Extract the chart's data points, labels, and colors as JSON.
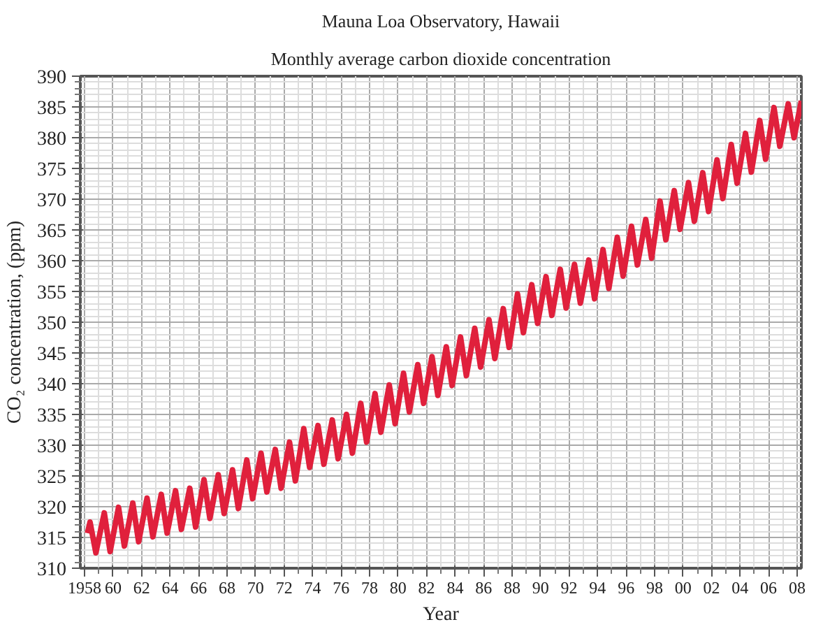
{
  "chart_data": {
    "type": "line",
    "title": "Mauna Loa Observatory, Hawaii",
    "subtitle": "Monthly average carbon dioxide concentration",
    "xlabel": "Year",
    "ylabel": "CO₂ concentration, (ppm)",
    "xlim": [
      1957.7,
      2008.3
    ],
    "ylim": [
      310,
      390
    ],
    "xticks": [
      {
        "value": 1958,
        "label": "1958"
      },
      {
        "value": 1960,
        "label": "60"
      },
      {
        "value": 1962,
        "label": "62"
      },
      {
        "value": 1964,
        "label": "64"
      },
      {
        "value": 1966,
        "label": "66"
      },
      {
        "value": 1968,
        "label": "68"
      },
      {
        "value": 1970,
        "label": "70"
      },
      {
        "value": 1972,
        "label": "72"
      },
      {
        "value": 1974,
        "label": "74"
      },
      {
        "value": 1976,
        "label": "76"
      },
      {
        "value": 1978,
        "label": "78"
      },
      {
        "value": 1980,
        "label": "80"
      },
      {
        "value": 1982,
        "label": "82"
      },
      {
        "value": 1984,
        "label": "84"
      },
      {
        "value": 1986,
        "label": "86"
      },
      {
        "value": 1988,
        "label": "88"
      },
      {
        "value": 1990,
        "label": "90"
      },
      {
        "value": 1992,
        "label": "92"
      },
      {
        "value": 1994,
        "label": "94"
      },
      {
        "value": 1996,
        "label": "96"
      },
      {
        "value": 1998,
        "label": "98"
      },
      {
        "value": 2000,
        "label": "00"
      },
      {
        "value": 2002,
        "label": "02"
      },
      {
        "value": 2004,
        "label": "04"
      },
      {
        "value": 2006,
        "label": "06"
      },
      {
        "value": 2008,
        "label": "08"
      }
    ],
    "yticks": [
      310,
      315,
      320,
      325,
      330,
      335,
      340,
      345,
      350,
      355,
      360,
      365,
      370,
      375,
      380,
      385,
      390
    ],
    "grid": true,
    "line_style": "solid",
    "series": [
      {
        "color": "#e0203c",
        "x": [
          1958.2,
          1958.38,
          1958.79,
          1959.38,
          1959.79,
          1960.38,
          1960.79,
          1961.38,
          1961.79,
          1962.38,
          1962.79,
          1963.38,
          1963.79,
          1964.38,
          1964.79,
          1965.38,
          1965.79,
          1966.38,
          1966.79,
          1967.38,
          1967.79,
          1968.38,
          1968.79,
          1969.38,
          1969.79,
          1970.38,
          1970.79,
          1971.38,
          1971.79,
          1972.38,
          1972.79,
          1973.38,
          1973.79,
          1974.38,
          1974.79,
          1975.38,
          1975.79,
          1976.38,
          1976.79,
          1977.38,
          1977.79,
          1978.38,
          1978.79,
          1979.38,
          1979.79,
          1980.38,
          1980.79,
          1981.38,
          1981.79,
          1982.38,
          1982.79,
          1983.38,
          1983.79,
          1984.38,
          1984.79,
          1985.38,
          1985.79,
          1986.38,
          1986.79,
          1987.38,
          1987.79,
          1988.38,
          1988.79,
          1989.38,
          1989.79,
          1990.38,
          1990.79,
          1991.38,
          1991.79,
          1992.38,
          1992.79,
          1993.38,
          1993.79,
          1994.38,
          1994.79,
          1995.38,
          1995.79,
          1996.38,
          1996.79,
          1997.38,
          1997.79,
          1998.38,
          1998.79,
          1999.38,
          1999.79,
          2000.38,
          2000.79,
          2001.38,
          2001.79,
          2002.38,
          2002.79,
          2003.38,
          2003.79,
          2004.38,
          2004.79,
          2005.38,
          2005.79,
          2006.38,
          2006.79,
          2007.38,
          2007.79,
          2008.3
        ],
        "values": [
          315.7,
          317.5,
          312.5,
          319.0,
          312.7,
          319.9,
          313.6,
          320.6,
          314.3,
          321.4,
          315.1,
          322.0,
          315.7,
          322.6,
          316.3,
          323.0,
          316.7,
          324.4,
          318.1,
          325.2,
          318.9,
          326.0,
          319.7,
          327.6,
          321.3,
          328.7,
          322.4,
          329.3,
          323.0,
          330.5,
          324.2,
          332.7,
          326.4,
          333.2,
          326.9,
          334.1,
          327.8,
          335.0,
          328.7,
          336.8,
          330.5,
          338.4,
          332.1,
          339.8,
          333.5,
          341.7,
          335.4,
          343.1,
          336.8,
          344.4,
          338.1,
          346.0,
          339.7,
          347.6,
          341.3,
          349.0,
          342.7,
          350.4,
          344.1,
          352.2,
          345.9,
          354.6,
          348.3,
          356.1,
          349.8,
          357.4,
          351.1,
          358.6,
          352.3,
          359.4,
          353.1,
          360.1,
          353.8,
          361.8,
          355.5,
          363.8,
          357.5,
          365.6,
          359.3,
          366.7,
          360.4,
          369.7,
          363.4,
          371.4,
          365.1,
          372.7,
          366.4,
          374.3,
          368.0,
          376.4,
          370.1,
          378.9,
          372.6,
          380.7,
          374.4,
          382.8,
          376.5,
          384.9,
          378.6,
          385.5,
          380.0,
          386.0
        ]
      }
    ]
  }
}
